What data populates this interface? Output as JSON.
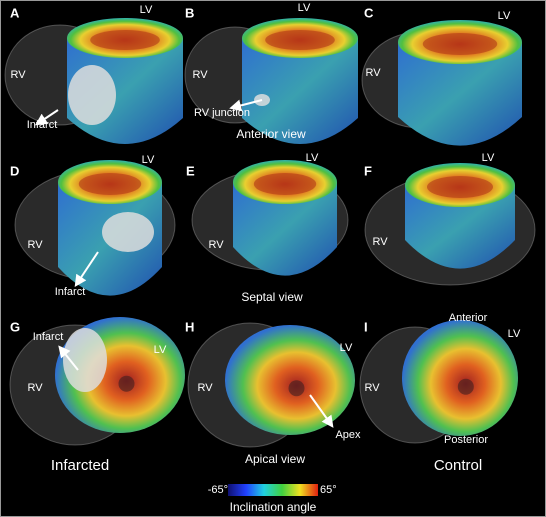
{
  "panels": [
    {
      "letter": "A",
      "labels": [
        "LV",
        "RV",
        "Infarct"
      ]
    },
    {
      "letter": "B",
      "labels": [
        "LV",
        "RV",
        "RV junction"
      ]
    },
    {
      "letter": "C",
      "labels": [
        "LV",
        "RV"
      ]
    },
    {
      "letter": "D",
      "labels": [
        "LV",
        "RV",
        "Infarct"
      ]
    },
    {
      "letter": "E",
      "labels": [
        "LV",
        "RV"
      ]
    },
    {
      "letter": "F",
      "labels": [
        "LV",
        "RV"
      ]
    },
    {
      "letter": "G",
      "labels": [
        "Infarct",
        "LV",
        "RV"
      ]
    },
    {
      "letter": "H",
      "labels": [
        "LV",
        "RV",
        "Apex"
      ]
    },
    {
      "letter": "I",
      "labels": [
        "Anterior",
        "LV",
        "RV",
        "Posterior"
      ]
    }
  ],
  "captions": [
    "Anterior view",
    "Septal view",
    "Infarcted",
    "Apical view",
    "Control"
  ],
  "colorbar": {
    "min_label": "-65°",
    "max_label": "65°",
    "title": "Inclination angle"
  }
}
